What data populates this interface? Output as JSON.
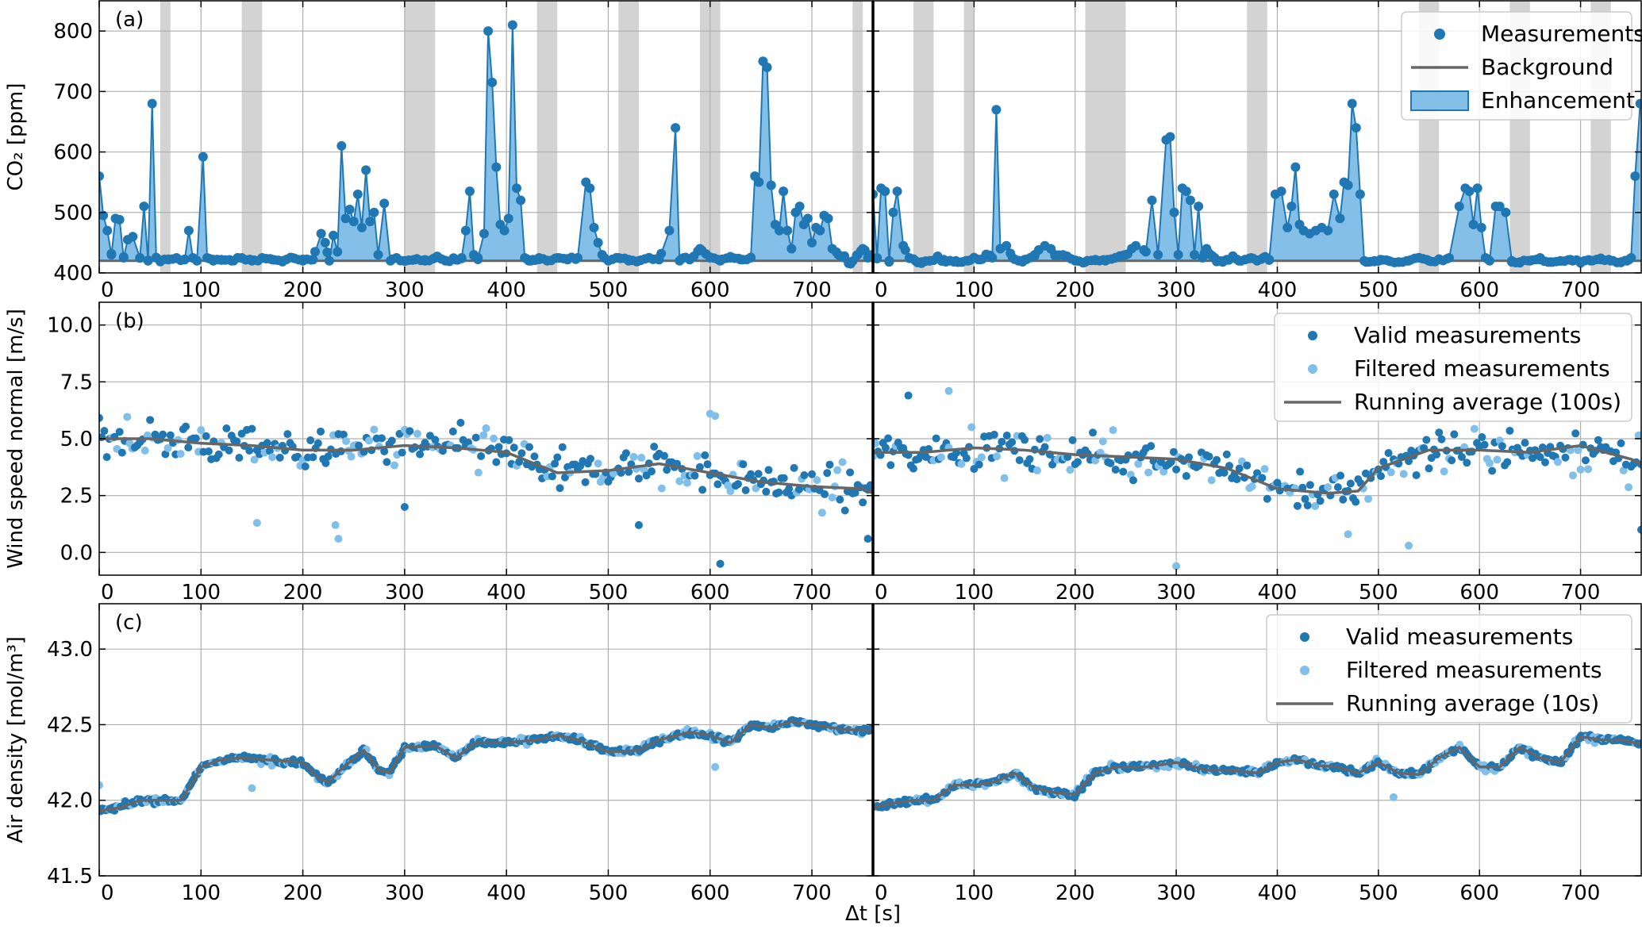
{
  "figure": {
    "x_axis_label": "Δt [s]"
  },
  "colors": {
    "dark_blue": "#1f77b4",
    "light_blue": "#7fbfea",
    "fill_blue": "#84bfe8",
    "gray_line": "#666666",
    "gray_band": "#d3d3d3",
    "grid": "#b0b0b0"
  },
  "chart_data": [
    {
      "type": "line",
      "panel": "a",
      "label": "(a)",
      "ylabel": "CO₂ [ppm]",
      "xlim": [
        0,
        760
      ],
      "ylim": [
        400,
        850
      ],
      "xticks": [
        0,
        100,
        200,
        300,
        400,
        500,
        600,
        700
      ],
      "yticks": [
        400,
        500,
        600,
        700,
        800
      ],
      "grid": true,
      "legend_position": "top-right",
      "legend": [
        "Measurements",
        "Background",
        "Enhancement"
      ],
      "background_ppm": [
        420,
        420
      ],
      "left": {
        "x": [
          0,
          4,
          8,
          12,
          16,
          20,
          24,
          28,
          33,
          40,
          44,
          48,
          52,
          56,
          60,
          68,
          76,
          84,
          88,
          92,
          96,
          102,
          106,
          112,
          120,
          130,
          140,
          150,
          160,
          170,
          180,
          190,
          200,
          210,
          218,
          222,
          226,
          230,
          234,
          238,
          242,
          246,
          250,
          254,
          258,
          262,
          266,
          270,
          274,
          280,
          286,
          292,
          300,
          310,
          320,
          330,
          340,
          350,
          356,
          360,
          364,
          368,
          372,
          378,
          382,
          386,
          390,
          394,
          398,
          402,
          406,
          410,
          414,
          418,
          422,
          426,
          432,
          440,
          450,
          460,
          470,
          478,
          482,
          486,
          490,
          494,
          500,
          510,
          520,
          530,
          540,
          550,
          560,
          566,
          570,
          574,
          580,
          590,
          600,
          610,
          620,
          630,
          640,
          644,
          648,
          652,
          656,
          660,
          664,
          668,
          672,
          676,
          680,
          684,
          688,
          692,
          696,
          700,
          704,
          708,
          712,
          716,
          720,
          726,
          732,
          738,
          745,
          750,
          755,
          759
        ],
        "y": [
          560,
          495,
          470,
          430,
          490,
          488,
          425,
          455,
          460,
          425,
          510,
          420,
          680,
          425,
          420,
          422,
          425,
          422,
          470,
          425,
          420,
          592,
          425,
          420,
          422,
          420,
          425,
          420,
          425,
          422,
          420,
          425,
          420,
          422,
          465,
          450,
          420,
          462,
          435,
          610,
          490,
          505,
          485,
          530,
          475,
          570,
          485,
          500,
          430,
          515,
          420,
          425,
          420,
          422,
          420,
          425,
          420,
          422,
          425,
          470,
          535,
          430,
          425,
          465,
          800,
          715,
          575,
          480,
          470,
          490,
          810,
          540,
          520,
          425,
          420,
          422,
          425,
          420,
          425,
          422,
          425,
          550,
          540,
          475,
          450,
          430,
          420,
          425,
          422,
          420,
          425,
          422,
          470,
          640,
          420,
          425,
          422,
          440,
          425,
          420,
          425,
          422,
          425,
          560,
          550,
          750,
          740,
          545,
          480,
          470,
          535,
          470,
          440,
          500,
          510,
          480,
          490,
          450,
          475,
          470,
          495,
          490,
          440,
          430,
          425,
          415,
          430,
          440,
          425,
          430
        ],
        "excluded_intervals": [
          [
            60,
            70
          ],
          [
            140,
            160
          ],
          [
            300,
            330
          ],
          [
            430,
            450
          ],
          [
            510,
            530
          ],
          [
            590,
            610
          ],
          [
            740,
            750
          ]
        ]
      },
      "right": {
        "x": [
          0,
          4,
          8,
          12,
          16,
          20,
          24,
          30,
          36,
          42,
          48,
          56,
          64,
          70,
          76,
          82,
          88,
          94,
          100,
          106,
          112,
          118,
          122,
          126,
          132,
          138,
          144,
          150,
          160,
          170,
          180,
          190,
          200,
          210,
          220,
          230,
          240,
          250,
          260,
          270,
          276,
          282,
          290,
          294,
          298,
          302,
          306,
          310,
          314,
          318,
          322,
          326,
          330,
          334,
          338,
          342,
          346,
          350,
          356,
          362,
          368,
          374,
          380,
          386,
          392,
          398,
          404,
          410,
          414,
          418,
          422,
          426,
          432,
          438,
          444,
          450,
          456,
          462,
          466,
          470,
          474,
          478,
          482,
          486,
          490,
          496,
          502,
          510,
          520,
          530,
          540,
          550,
          560,
          570,
          580,
          586,
          590,
          594,
          598,
          602,
          606,
          610,
          616,
          620,
          626,
          632,
          640,
          650,
          660,
          670,
          680,
          690,
          700,
          710,
          720,
          730,
          740,
          746,
          750,
          754,
          759
        ],
        "y": [
          530,
          425,
          540,
          535,
          420,
          500,
          535,
          445,
          425,
          420,
          418,
          420,
          425,
          422,
          420,
          420,
          418,
          420,
          425,
          422,
          430,
          425,
          670,
          440,
          445,
          425,
          420,
          422,
          430,
          445,
          430,
          428,
          420,
          418,
          422,
          420,
          425,
          430,
          445,
          435,
          520,
          430,
          620,
          625,
          500,
          430,
          540,
          535,
          520,
          430,
          510,
          425,
          440,
          430,
          425,
          420,
          418,
          422,
          425,
          420,
          422,
          425,
          420,
          425,
          422,
          530,
          535,
          475,
          510,
          575,
          480,
          470,
          465,
          470,
          475,
          470,
          530,
          490,
          550,
          545,
          680,
          640,
          530,
          420,
          418,
          420,
          422,
          420,
          418,
          420,
          425,
          420,
          422,
          425,
          510,
          540,
          535,
          480,
          540,
          475,
          425,
          420,
          510,
          510,
          500,
          420,
          418,
          420,
          422,
          418,
          420,
          422,
          418,
          420,
          422,
          420,
          418,
          420,
          425,
          560,
          680
        ],
        "excluded_intervals": [
          [
            40,
            60
          ],
          [
            90,
            100
          ],
          [
            210,
            250
          ],
          [
            370,
            390
          ],
          [
            540,
            560
          ],
          [
            630,
            650
          ],
          [
            710,
            730
          ]
        ]
      }
    },
    {
      "type": "scatter",
      "panel": "b",
      "label": "(b)",
      "ylabel": "Wind speed normal [m/s]",
      "xlim": [
        0,
        760
      ],
      "ylim": [
        -1,
        11
      ],
      "xticks": [
        0,
        100,
        200,
        300,
        400,
        500,
        600,
        700
      ],
      "yticks": [
        0.0,
        2.5,
        5.0,
        7.5,
        10.0
      ],
      "ytick_labels": [
        "0.0",
        "2.5",
        "5.0",
        "7.5",
        "10.0"
      ],
      "grid": true,
      "legend_position": "top-right",
      "legend": [
        "Valid measurements",
        "Filtered measurements",
        "Running average (100s)"
      ],
      "left": {
        "avg_x": [
          0,
          50,
          100,
          150,
          200,
          250,
          300,
          350,
          400,
          450,
          500,
          550,
          600,
          650,
          700,
          750,
          760
        ],
        "avg_y": [
          5.0,
          5.0,
          4.8,
          4.7,
          4.5,
          4.5,
          4.7,
          4.6,
          4.4,
          3.5,
          3.6,
          3.9,
          3.5,
          3.1,
          2.9,
          2.8,
          2.6
        ],
        "outliers_valid": [
          [
            300,
            2.0
          ],
          [
            530,
            1.2
          ],
          [
            610,
            -0.5
          ],
          [
            755,
            0.6
          ]
        ],
        "outliers_filtered": [
          [
            155,
            1.3
          ],
          [
            232,
            1.2
          ],
          [
            235,
            0.6
          ],
          [
            600,
            6.1
          ],
          [
            605,
            6.0
          ]
        ]
      },
      "right": {
        "avg_x": [
          0,
          50,
          100,
          150,
          200,
          250,
          300,
          350,
          400,
          450,
          480,
          500,
          550,
          600,
          650,
          700,
          750,
          760
        ],
        "avg_y": [
          4.4,
          4.4,
          4.6,
          4.5,
          4.3,
          4.2,
          4.1,
          3.7,
          2.8,
          2.6,
          2.7,
          3.7,
          4.5,
          4.5,
          4.4,
          4.7,
          4.1,
          3.9
        ],
        "outliers_valid": [
          [
            35,
            6.9
          ],
          [
            760,
            1.0
          ]
        ],
        "outliers_filtered": [
          [
            75,
            7.1
          ],
          [
            300,
            -0.6
          ],
          [
            470,
            0.8
          ],
          [
            530,
            0.3
          ]
        ]
      }
    },
    {
      "type": "scatter",
      "panel": "c",
      "label": "(c)",
      "ylabel": "Air density [mol/m³]",
      "xlim": [
        0,
        760
      ],
      "ylim": [
        41.5,
        43.3
      ],
      "xticks": [
        0,
        100,
        200,
        300,
        400,
        500,
        600,
        700
      ],
      "yticks": [
        41.5,
        42.0,
        42.5,
        43.0
      ],
      "ytick_labels": [
        "41.5",
        "42.0",
        "42.5",
        "43.0"
      ],
      "grid": true,
      "legend_position": "top-right",
      "legend": [
        "Valid measurements",
        "Filtered measurements",
        "Running average (10s)"
      ],
      "left": {
        "avg_x": [
          0,
          20,
          40,
          60,
          80,
          90,
          100,
          120,
          140,
          160,
          180,
          200,
          215,
          225,
          240,
          260,
          275,
          285,
          300,
          330,
          350,
          370,
          400,
          430,
          450,
          470,
          500,
          530,
          550,
          580,
          600,
          620,
          640,
          660,
          680,
          700,
          730,
          760
        ],
        "avg_y": [
          41.93,
          41.95,
          42.0,
          42.0,
          42.0,
          42.1,
          42.22,
          42.27,
          42.28,
          42.27,
          42.26,
          42.25,
          42.15,
          42.12,
          42.22,
          42.33,
          42.2,
          42.18,
          42.35,
          42.36,
          42.28,
          42.38,
          42.38,
          42.4,
          42.43,
          42.4,
          42.32,
          42.33,
          42.4,
          42.45,
          42.43,
          42.38,
          42.5,
          42.48,
          42.52,
          42.5,
          42.47,
          42.46
        ],
        "outliers_filtered": [
          [
            0,
            42.1
          ],
          [
            150,
            42.08
          ],
          [
            605,
            42.22
          ]
        ]
      },
      "right": {
        "avg_x": [
          0,
          20,
          40,
          60,
          80,
          100,
          120,
          140,
          160,
          180,
          200,
          220,
          240,
          270,
          300,
          330,
          350,
          380,
          400,
          420,
          440,
          460,
          480,
          500,
          520,
          540,
          560,
          580,
          600,
          620,
          640,
          660,
          680,
          700,
          720,
          740,
          760
        ],
        "avg_y": [
          41.95,
          41.98,
          42.0,
          42.0,
          42.1,
          42.1,
          42.12,
          42.18,
          42.08,
          42.05,
          42.04,
          42.18,
          42.22,
          42.22,
          42.25,
          42.2,
          42.2,
          42.18,
          42.25,
          42.27,
          42.23,
          42.22,
          42.18,
          42.25,
          42.18,
          42.17,
          42.28,
          42.35,
          42.22,
          42.22,
          42.35,
          42.28,
          42.25,
          42.42,
          42.4,
          42.4,
          42.37
        ],
        "outliers_filtered": [
          [
            515,
            42.02
          ]
        ]
      }
    }
  ]
}
